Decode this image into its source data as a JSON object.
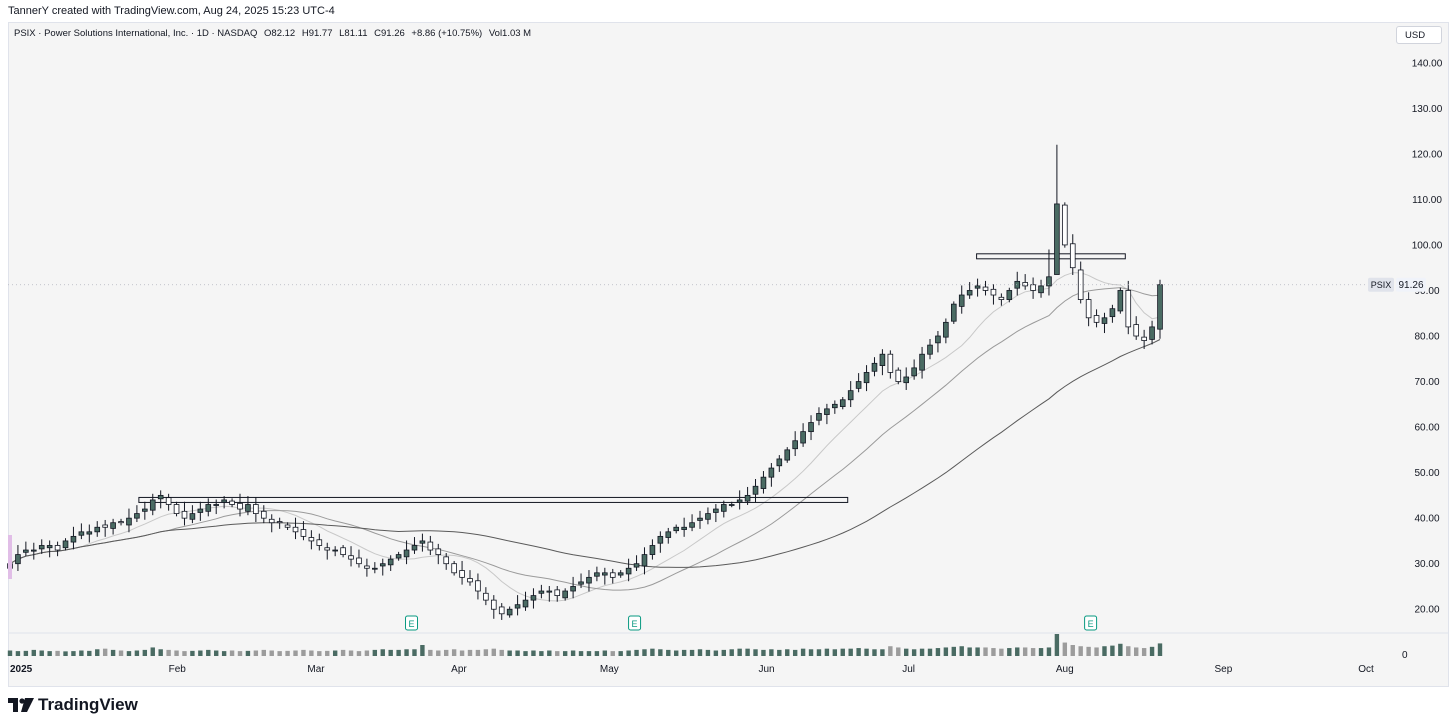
{
  "attribution": "TannerY created with TradingView.com, Aug 24, 2025 15:23 UTC-4",
  "header": {
    "symbol_name": "PSIX · Power Solutions International, Inc. · 1D · NASDAQ",
    "open": "O82.12",
    "high": "H91.77",
    "low": "L81.11",
    "close": "C91.26",
    "change": "+8.86 (+10.75%)",
    "volume": "Vol1.03 M"
  },
  "currency_button": "USD",
  "brand": "TradingView",
  "colors": {
    "up": "#4a6b63",
    "down": "#ffffff",
    "wick": "#131722",
    "ma_fast": "#c8c8c8",
    "ma_mid": "#9a9a9a",
    "ma_slow": "#5a5a5a",
    "earnings": "#089981",
    "vol_up": "#4a6b63",
    "vol_down": "#9c9c9c"
  },
  "chart_data": {
    "type": "candlestick",
    "ticker": "PSIX",
    "last_price_label": "91.26",
    "y_axis": {
      "min": 15,
      "max": 145,
      "ticks": [
        "20.00",
        "30.00",
        "40.00",
        "50.00",
        "60.00",
        "70.00",
        "80.00",
        "90.00",
        "100.00",
        "110.00",
        "120.00",
        "130.00",
        "140.00"
      ]
    },
    "x_axis_labels": [
      {
        "label": "2025",
        "date": "2025-01-02"
      },
      {
        "label": "Feb",
        "date": "2025-02-03"
      },
      {
        "label": "Mar",
        "date": "2025-03-03"
      },
      {
        "label": "Apr",
        "date": "2025-04-01"
      },
      {
        "label": "May",
        "date": "2025-05-01"
      },
      {
        "label": "Jun",
        "date": "2025-06-02"
      },
      {
        "label": "Jul",
        "date": "2025-07-01"
      },
      {
        "label": "Aug",
        "date": "2025-08-01"
      },
      {
        "label": "Sep",
        "date": "2025-09-02"
      },
      {
        "label": "Oct",
        "date": "2025-10-01"
      }
    ],
    "volume_axis_label": "0",
    "earnings_marker_label": "E",
    "earnings_dates": [
      "2025-03-24",
      "2025-05-08",
      "2025-08-08"
    ],
    "resistance_lines": [
      {
        "price": 44,
        "from": "2025-01-28",
        "to": "2025-06-20"
      },
      {
        "price": 97.5,
        "from": "2025-07-16",
        "to": "2025-08-15"
      }
    ],
    "closes": [
      30,
      32,
      33,
      33,
      34,
      34,
      33,
      35,
      36,
      37,
      37,
      38,
      38,
      39,
      39,
      40,
      41,
      42,
      44,
      45,
      43,
      41,
      40,
      41,
      42,
      43,
      43,
      44,
      43,
      42,
      43,
      41,
      40,
      39,
      39,
      38,
      37,
      36,
      35,
      34,
      33,
      33,
      32,
      31,
      30,
      29,
      29,
      30,
      31,
      32,
      33,
      34,
      35,
      33,
      32,
      30,
      28,
      27,
      26,
      24,
      22,
      20,
      19,
      20,
      21,
      22,
      23,
      24,
      24,
      23,
      24,
      25,
      26,
      27,
      28,
      28,
      27,
      28,
      29,
      30,
      32,
      34,
      36,
      37,
      38,
      38,
      39,
      40,
      41,
      42,
      43,
      43,
      44,
      45,
      47,
      49,
      51,
      53,
      55,
      57,
      59,
      61,
      63,
      64,
      65,
      66,
      68,
      70,
      72,
      74,
      76,
      72,
      70,
      71,
      73,
      76,
      78,
      80,
      83,
      87,
      89,
      90,
      91,
      90,
      89,
      88,
      90,
      92,
      91,
      90,
      91,
      93,
      109,
      100,
      95,
      88,
      84,
      83,
      84,
      86,
      90,
      82,
      80,
      79,
      82,
      91.26
    ],
    "volumes": [
      0.45,
      0.4,
      0.42,
      0.5,
      0.45,
      0.4,
      0.42,
      0.38,
      0.4,
      0.45,
      0.42,
      0.55,
      0.6,
      0.5,
      0.45,
      0.4,
      0.45,
      0.5,
      0.7,
      0.55,
      0.5,
      0.45,
      0.4,
      0.42,
      0.45,
      0.5,
      0.45,
      0.4,
      0.45,
      0.4,
      0.42,
      0.45,
      0.5,
      0.45,
      0.4,
      0.42,
      0.45,
      0.5,
      0.45,
      0.4,
      0.42,
      0.45,
      0.5,
      0.45,
      0.4,
      0.45,
      0.5,
      0.55,
      0.5,
      0.5,
      0.55,
      0.55,
      0.9,
      0.5,
      0.45,
      0.5,
      0.55,
      0.45,
      0.5,
      0.5,
      0.55,
      0.6,
      0.5,
      0.45,
      0.45,
      0.4,
      0.45,
      0.4,
      0.45,
      0.4,
      0.4,
      0.45,
      0.4,
      0.4,
      0.4,
      0.45,
      0.4,
      0.4,
      0.45,
      0.5,
      0.55,
      0.6,
      0.55,
      0.5,
      0.45,
      0.5,
      0.5,
      0.55,
      0.5,
      0.45,
      0.5,
      0.55,
      0.6,
      0.6,
      0.55,
      0.5,
      0.55,
      0.5,
      0.55,
      0.5,
      0.6,
      0.55,
      0.55,
      0.6,
      0.55,
      0.6,
      0.6,
      0.65,
      0.6,
      0.55,
      0.55,
      0.8,
      0.7,
      0.6,
      0.55,
      0.6,
      0.6,
      0.65,
      0.7,
      0.75,
      0.8,
      0.7,
      0.7,
      0.7,
      0.65,
      0.6,
      0.65,
      0.7,
      0.7,
      0.65,
      0.65,
      0.7,
      1.8,
      1.1,
      0.9,
      0.8,
      0.75,
      0.7,
      0.8,
      0.85,
      1.0,
      0.8,
      0.7,
      0.65,
      0.75,
      1.03
    ]
  }
}
